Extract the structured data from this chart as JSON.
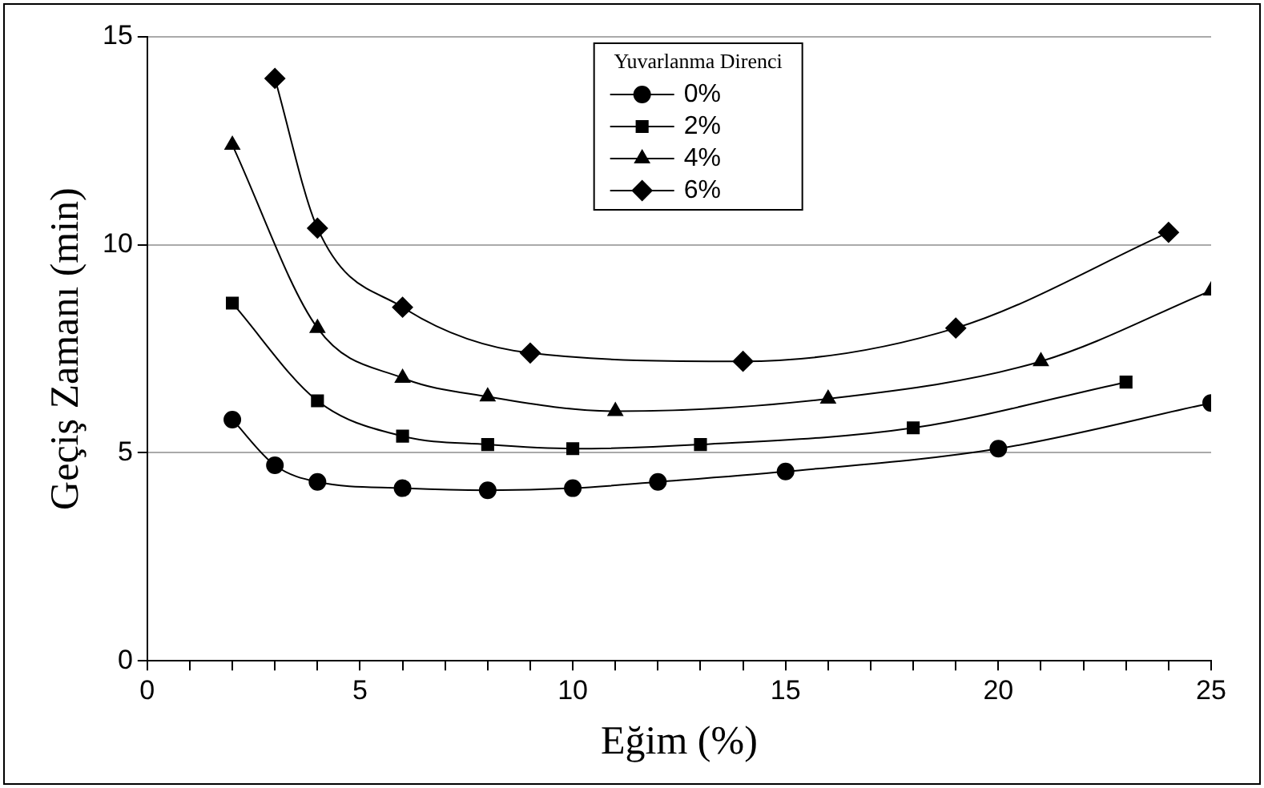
{
  "chart_data": {
    "type": "line",
    "xlabel": "Eğim (%)",
    "ylabel": "Geçiş Zamanı (min)",
    "legend_title": "Yuvarlanma Direnci",
    "legend": "top",
    "grid": "y",
    "xlim": [
      0,
      25
    ],
    "ylim": [
      0,
      15
    ],
    "xticks": [
      0,
      {
        "value": 1,
        "label": null
      },
      {
        "value": 2,
        "label": null
      },
      {
        "value": 3,
        "label": null
      },
      {
        "value": 4,
        "label": null
      },
      5,
      {
        "value": 6,
        "label": null
      },
      {
        "value": 7,
        "label": null
      },
      {
        "value": 8,
        "label": null
      },
      {
        "value": 9,
        "label": null
      },
      10,
      {
        "value": 11,
        "label": null
      },
      {
        "value": 12,
        "label": null
      },
      {
        "value": 13,
        "label": null
      },
      {
        "value": 14,
        "label": null
      },
      15,
      {
        "value": 16,
        "label": null
      },
      {
        "value": 17,
        "label": null
      },
      {
        "value": 18,
        "label": null
      },
      {
        "value": 19,
        "label": null
      },
      20,
      {
        "value": 21,
        "label": null
      },
      {
        "value": 22,
        "label": null
      },
      {
        "value": 23,
        "label": null
      },
      {
        "value": 24,
        "label": null
      },
      25
    ],
    "yticks": [
      0,
      5,
      10,
      15
    ],
    "series": [
      {
        "name": "0%",
        "color": "#000000",
        "marker": "circle",
        "x": [
          2,
          3,
          4,
          6,
          8,
          10,
          12,
          15,
          20,
          25
        ],
        "values": [
          5.8,
          4.7,
          4.3,
          4.15,
          4.1,
          4.15,
          4.3,
          4.55,
          5.1,
          6.2
        ]
      },
      {
        "name": "2%",
        "color": "#000000",
        "marker": "square",
        "x": [
          2,
          4,
          6,
          8,
          10,
          13,
          18,
          23
        ],
        "values": [
          8.6,
          6.25,
          5.4,
          5.2,
          5.1,
          5.2,
          5.6,
          6.7
        ]
      },
      {
        "name": "4%",
        "color": "#000000",
        "marker": "triangle",
        "x": [
          2,
          4,
          6,
          8,
          11,
          16,
          21,
          25
        ],
        "values": [
          12.4,
          8.0,
          6.8,
          6.35,
          6.0,
          6.3,
          7.2,
          8.9
        ]
      },
      {
        "name": "6%",
        "color": "#000000",
        "marker": "diamond",
        "x": [
          3,
          4,
          6,
          9,
          14,
          19,
          24
        ],
        "values": [
          14.0,
          10.4,
          8.5,
          7.4,
          7.2,
          8.0,
          10.3
        ]
      }
    ]
  }
}
